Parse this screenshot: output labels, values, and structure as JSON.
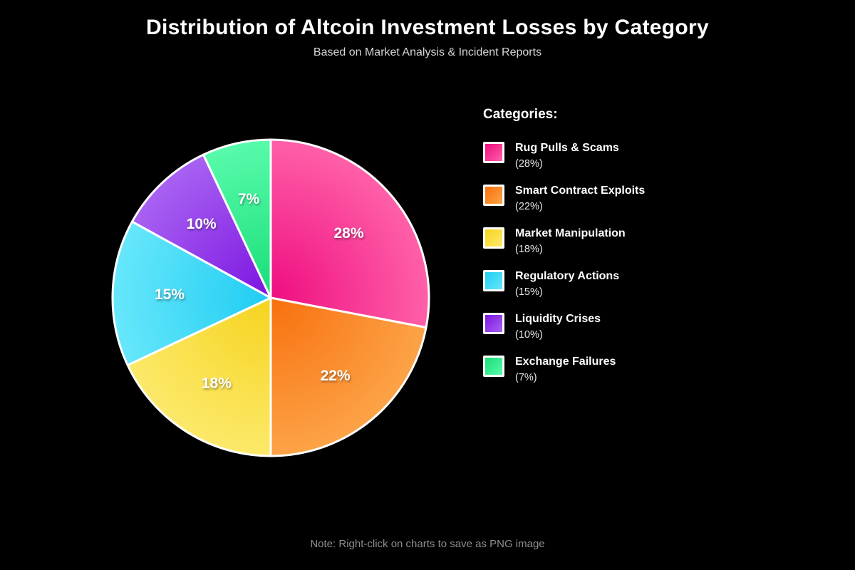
{
  "header": {
    "title": "Distribution of Altcoin Investment Losses by Category",
    "subtitle": "Based on Market Analysis & Incident Reports"
  },
  "legend": {
    "heading": "Categories:"
  },
  "footer": {
    "note": "Note: Right-click on charts to save as PNG image"
  },
  "colors": {
    "background": "#000000",
    "slice_border": "#ffffff",
    "title_text": "#ffffff",
    "subtitle_text": "#d6d6d6",
    "legend_name_text": "#ffffff",
    "legend_pct_text": "#e6e6e6",
    "note_text": "#8f8f8f"
  },
  "chart_data": {
    "type": "pie",
    "title": "Distribution of Altcoin Investment Losses by Category",
    "subtitle": "Based on Market Analysis & Incident Reports",
    "categories": [
      "Rug Pulls & Scams",
      "Smart Contract Exploits",
      "Market Manipulation",
      "Regulatory Actions",
      "Liquidity Crises",
      "Exchange Failures"
    ],
    "values": [
      28,
      22,
      18,
      15,
      10,
      7
    ],
    "unit": "%",
    "start_angle": "12-oclock",
    "direction": "clockwise",
    "legend_position": "right",
    "slice_label_radius_fraction": 0.64,
    "gradient_style": "darker-at-center-lighter-at-rim",
    "slices": [
      {
        "label": "Rug Pulls & Scams",
        "value": 28,
        "slice_label": "28%",
        "legend_pct": "(28%)",
        "color_inner": "#ee0d80",
        "color_outer": "#ff60a8"
      },
      {
        "label": "Smart Contract Exploits",
        "value": 22,
        "slice_label": "22%",
        "legend_pct": "(22%)",
        "color_inner": "#f8700e",
        "color_outer": "#fca347"
      },
      {
        "label": "Market Manipulation",
        "value": 18,
        "slice_label": "18%",
        "legend_pct": "(18%)",
        "color_inner": "#f6d31e",
        "color_outer": "#fce96a"
      },
      {
        "label": "Regulatory Actions",
        "value": 15,
        "slice_label": "15%",
        "legend_pct": "(15%)",
        "color_inner": "#1fccf2",
        "color_outer": "#67e7fb"
      },
      {
        "label": "Liquidity Crises",
        "value": 10,
        "slice_label": "10%",
        "legend_pct": "(10%)",
        "color_inner": "#7c14e0",
        "color_outer": "#a862f2"
      },
      {
        "label": "Exchange Failures",
        "value": 7,
        "slice_label": "7%",
        "legend_pct": "(7%)",
        "color_inner": "#19dd78",
        "color_outer": "#58fbab"
      }
    ]
  }
}
